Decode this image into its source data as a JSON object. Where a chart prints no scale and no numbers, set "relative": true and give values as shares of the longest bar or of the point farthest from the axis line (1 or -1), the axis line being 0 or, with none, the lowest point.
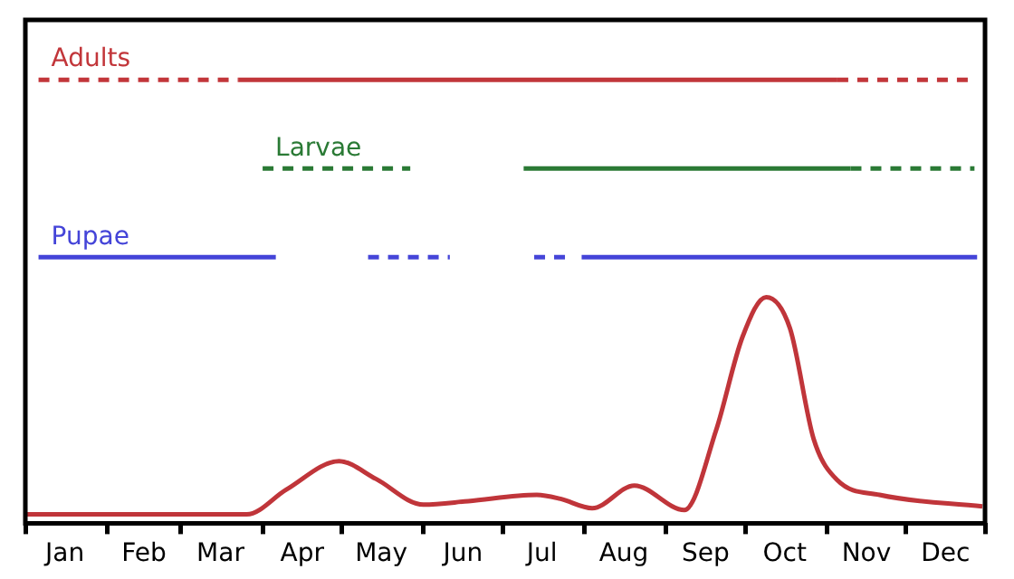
{
  "chart_data": {
    "type": "line",
    "relative": true,
    "grid": false,
    "legend": false,
    "marker": "none",
    "tick_labels": "x",
    "xlim": [
      "--01-01",
      "--12-31"
    ],
    "xticks": [
      {
        "value": "--01-01",
        "label": null
      },
      {
        "value": "--01-16",
        "label": "Jan"
      },
      {
        "value": "--02-01",
        "label": null
      },
      {
        "value": "--02-15",
        "label": "Feb"
      },
      {
        "value": "--03-01",
        "label": null
      },
      {
        "value": "--03-16",
        "label": "Mar"
      },
      {
        "value": "--04-01",
        "label": null
      },
      {
        "value": "--04-16",
        "label": "Apr"
      },
      {
        "value": "--05-01",
        "label": null
      },
      {
        "value": "--05-16",
        "label": "May"
      },
      {
        "value": "--06-01",
        "label": null
      },
      {
        "value": "--06-16",
        "label": "Jun"
      },
      {
        "value": "--07-01",
        "label": null
      },
      {
        "value": "--07-16",
        "label": "Jul"
      },
      {
        "value": "--08-01",
        "label": null
      },
      {
        "value": "--08-16",
        "label": "Aug"
      },
      {
        "value": "--09-01",
        "label": null
      },
      {
        "value": "--09-16",
        "label": "Sep"
      },
      {
        "value": "--10-01",
        "label": null
      },
      {
        "value": "--10-16",
        "label": "Oct"
      },
      {
        "value": "--11-01",
        "label": null
      },
      {
        "value": "--11-16",
        "label": "Nov"
      },
      {
        "value": "--12-01",
        "label": null
      },
      {
        "value": "--12-16",
        "label": "Dec"
      },
      {
        "value": "--12-31",
        "label": null
      }
    ],
    "series": [
      {
        "name": "Adults",
        "color": "#c2363a",
        "line_style": "dashed",
        "x": [
          "--01-06",
          "--03-23",
          "--06-01",
          "--11-05",
          "--12-26"
        ],
        "values": [
          1,
          1,
          null,
          1,
          1
        ]
      },
      {
        "color": "#c1363a",
        "line_style": "solid",
        "x": [
          "--03-23",
          "--11-05"
        ],
        "values": [
          1,
          1
        ]
      },
      {
        "name": "Larvae",
        "color": "#2a7a35",
        "line_style": "dashed",
        "x": [
          "--04-01",
          "--05-27",
          "--08-01",
          "--11-10",
          "--12-27"
        ],
        "values": [
          0.8,
          0.8,
          null,
          0.8,
          0.8
        ]
      },
      {
        "color": "#2b7a35",
        "line_style": "solid",
        "x": [
          "--07-09",
          "--11-10"
        ],
        "values": [
          0.8,
          0.8
        ]
      },
      {
        "name": "Pupae",
        "color": "#4444d8",
        "line_style": "solid",
        "x": [
          "--01-06",
          "--04-06",
          "--06-01",
          "--07-31",
          "--12-28"
        ],
        "values": [
          0.6,
          0.6,
          null,
          0.6,
          0.6
        ]
      },
      {
        "color": "#4545d8",
        "line_style": "dashed",
        "x": [
          "--05-11",
          "--06-11",
          "--07-01",
          "--07-13",
          "--07-26"
        ],
        "values": [
          0.6,
          0.6,
          null,
          0.6,
          0.6
        ]
      },
      {
        "color": "#c0353a",
        "line_style": "solid",
        "x": [
          "--01-01",
          "--03-26",
          "--04-10",
          "--04-30",
          "--05-14",
          "--06-01",
          "--06-18",
          "--07-14",
          "--07-23",
          "--08-04",
          "--08-20",
          "--09-08",
          "--09-20",
          "--09-30",
          "--10-09",
          "--10-18",
          "--10-27",
          "--11-05",
          "--11-21",
          "--12-30"
        ],
        "values": [
          0.02,
          0.02,
          0.076,
          0.14,
          0.1,
          0.042,
          0.05,
          0.064,
          0.055,
          0.034,
          0.085,
          0.03,
          0.21,
          0.42,
          0.51,
          0.44,
          0.19,
          0.097,
          0.064,
          0.038
        ]
      }
    ]
  }
}
